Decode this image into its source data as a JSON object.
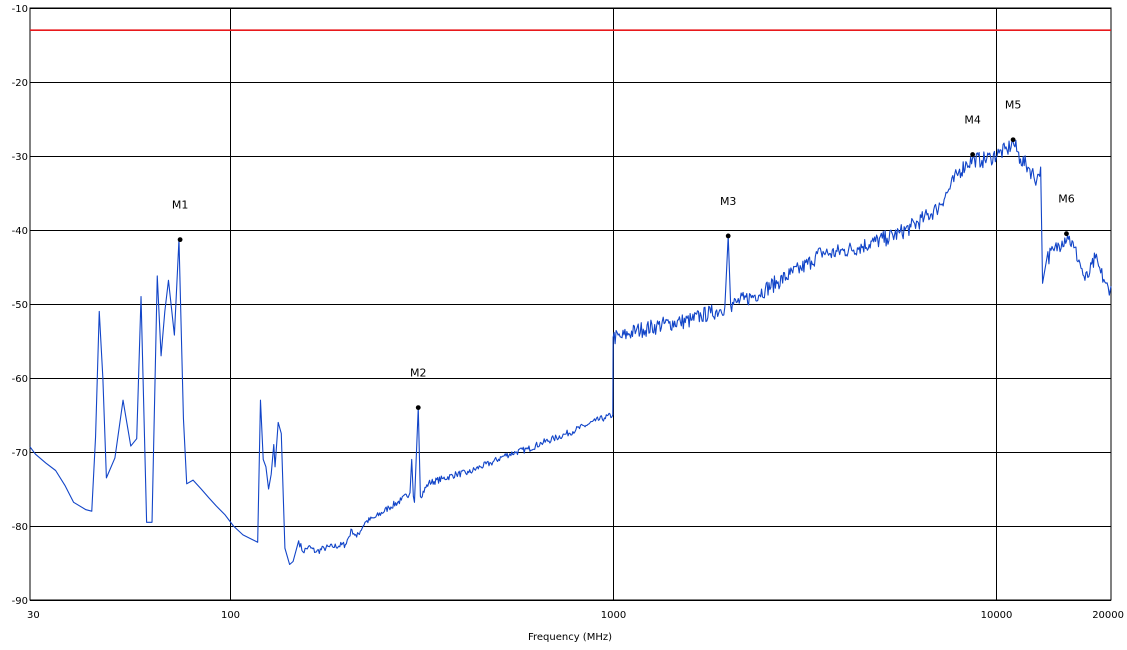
{
  "chart_data": {
    "type": "line",
    "title": "",
    "xlabel": "Frequency (MHz)",
    "ylabel": "",
    "x_scale": "log",
    "xlim": [
      30,
      20000
    ],
    "ylim": [
      -90,
      -10
    ],
    "grid": true,
    "x_ticks": [
      {
        "value": 30,
        "label": "30"
      },
      {
        "value": 100,
        "label": "100"
      },
      {
        "value": 1000,
        "label": "1000"
      },
      {
        "value": 10000,
        "label": "10000"
      },
      {
        "value": 20000,
        "label": "20000"
      }
    ],
    "y_ticks": [
      -10,
      -20,
      -30,
      -40,
      -50,
      -60,
      -70,
      -80,
      -90
    ],
    "limit_line": {
      "value": -13,
      "color": "#e8191c"
    },
    "trace_color": "#1245c8",
    "trace": [
      [
        30,
        -69.3
      ],
      [
        31,
        -70.3
      ],
      [
        33,
        -71.5
      ],
      [
        35,
        -72.5
      ],
      [
        37,
        -74.5
      ],
      [
        39,
        -76.8
      ],
      [
        42,
        -77.8
      ],
      [
        43.5,
        -78.0
      ],
      [
        44.5,
        -68
      ],
      [
        45.5,
        -51
      ],
      [
        46.5,
        -60
      ],
      [
        47.5,
        -73.5
      ],
      [
        50,
        -70.8
      ],
      [
        52.5,
        -63
      ],
      [
        55,
        -69.2
      ],
      [
        57,
        -68.2
      ],
      [
        58.5,
        -49
      ],
      [
        60.5,
        -79.5
      ],
      [
        62.5,
        -79.5
      ],
      [
        64.5,
        -46.2
      ],
      [
        66,
        -57
      ],
      [
        67.5,
        -51
      ],
      [
        69,
        -46.8
      ],
      [
        71.5,
        -54.2
      ],
      [
        73.5,
        -41.3
      ],
      [
        75.5,
        -65.5
      ],
      [
        77,
        -74.3
      ],
      [
        80,
        -73.8
      ],
      [
        84,
        -75
      ],
      [
        88,
        -76.2
      ],
      [
        92,
        -77.3
      ],
      [
        97,
        -78.5
      ],
      [
        102,
        -80
      ],
      [
        108,
        -81.2
      ],
      [
        114,
        -81.8
      ],
      [
        118,
        -82.2
      ],
      [
        120,
        -63
      ],
      [
        122,
        -71
      ],
      [
        124,
        -72
      ],
      [
        126,
        -75
      ],
      [
        128,
        -73
      ],
      [
        130,
        -69
      ],
      [
        131,
        -72
      ],
      [
        133.5,
        -66
      ],
      [
        136,
        -67.5
      ],
      [
        139,
        -83
      ],
      [
        143,
        -85.2
      ],
      [
        146,
        -84.8
      ],
      [
        151,
        -82
      ],
      [
        155,
        -83.5
      ],
      [
        160,
        -82.8
      ],
      [
        168,
        -83.5
      ],
      [
        176,
        -83
      ],
      [
        185,
        -82.8
      ],
      [
        200,
        -82.5
      ],
      [
        208,
        -80.5
      ],
      [
        214,
        -81.5
      ],
      [
        225,
        -79.5
      ],
      [
        240,
        -78.8
      ],
      [
        260,
        -77.5
      ],
      [
        280,
        -76.5
      ],
      [
        295,
        -75.5
      ],
      [
        298,
        -71
      ],
      [
        301,
        -76
      ],
      [
        303,
        -76.8
      ],
      [
        310,
        -64
      ],
      [
        314,
        -76
      ],
      [
        330,
        -74.2
      ],
      [
        360,
        -73.6
      ],
      [
        390,
        -73
      ],
      [
        420,
        -72.8
      ],
      [
        450,
        -72
      ],
      [
        480,
        -71.5
      ],
      [
        520,
        -70.5
      ],
      [
        560,
        -70
      ],
      [
        600,
        -69.6
      ],
      [
        650,
        -68.8
      ],
      [
        700,
        -68.2
      ],
      [
        750,
        -67.6
      ],
      [
        800,
        -67
      ],
      [
        850,
        -66.4
      ],
      [
        900,
        -65.8
      ],
      [
        950,
        -65.4
      ],
      [
        999,
        -65.0
      ],
      [
        1001,
        -54.5
      ],
      [
        1050,
        -54.5
      ],
      [
        1100,
        -54
      ],
      [
        1150,
        -53.6
      ],
      [
        1200,
        -53.4
      ],
      [
        1300,
        -53
      ],
      [
        1400,
        -52.6
      ],
      [
        1500,
        -52.4
      ],
      [
        1600,
        -52.2
      ],
      [
        1700,
        -51.6
      ],
      [
        1800,
        -51.2
      ],
      [
        1900,
        -50.8
      ],
      [
        1960,
        -50.4
      ],
      [
        2000,
        -40.8
      ],
      [
        2030,
        -50.2
      ],
      [
        2100,
        -49.8
      ],
      [
        2200,
        -49.4
      ],
      [
        2350,
        -48.8
      ],
      [
        2500,
        -48
      ],
      [
        2700,
        -47
      ],
      [
        2900,
        -46
      ],
      [
        3100,
        -45.2
      ],
      [
        3300,
        -44.2
      ],
      [
        3500,
        -43
      ],
      [
        3700,
        -43.2
      ],
      [
        4000,
        -42.8
      ],
      [
        4400,
        -42.3
      ],
      [
        4800,
        -41.6
      ],
      [
        5200,
        -41.1
      ],
      [
        5600,
        -40.4
      ],
      [
        6000,
        -39.6
      ],
      [
        6500,
        -38.4
      ],
      [
        7000,
        -37.2
      ],
      [
        7500,
        -34.8
      ],
      [
        8000,
        -32.2
      ],
      [
        8400,
        -31
      ],
      [
        8800,
        -30.4
      ],
      [
        9200,
        -30.6
      ],
      [
        9700,
        -30.2
      ],
      [
        10200,
        -29.6
      ],
      [
        10700,
        -29.2
      ],
      [
        11100,
        -28.1
      ],
      [
        11600,
        -30.4
      ],
      [
        12200,
        -31.6
      ],
      [
        12800,
        -33.2
      ],
      [
        13100,
        -31.5
      ],
      [
        13250,
        -47.2
      ],
      [
        13600,
        -43.8
      ],
      [
        14200,
        -42.8
      ],
      [
        14900,
        -41.5
      ],
      [
        15400,
        -40.7
      ],
      [
        16000,
        -42.4
      ],
      [
        16600,
        -44.5
      ],
      [
        17100,
        -46.8
      ],
      [
        17600,
        -45.8
      ],
      [
        18200,
        -43.8
      ],
      [
        18800,
        -45.8
      ],
      [
        19400,
        -47.2
      ],
      [
        19800,
        -48.8
      ],
      [
        20000,
        -47.6
      ]
    ],
    "markers": [
      {
        "label": "M1",
        "x": 74,
        "y": -41.3
      },
      {
        "label": "M2",
        "x": 310,
        "y": -64
      },
      {
        "label": "M3",
        "x": 2000,
        "y": -40.8
      },
      {
        "label": "M4",
        "x": 8700,
        "y": -29.8
      },
      {
        "label": "M5",
        "x": 11100,
        "y": -27.8
      },
      {
        "label": "M6",
        "x": 15300,
        "y": -40.5
      }
    ]
  }
}
